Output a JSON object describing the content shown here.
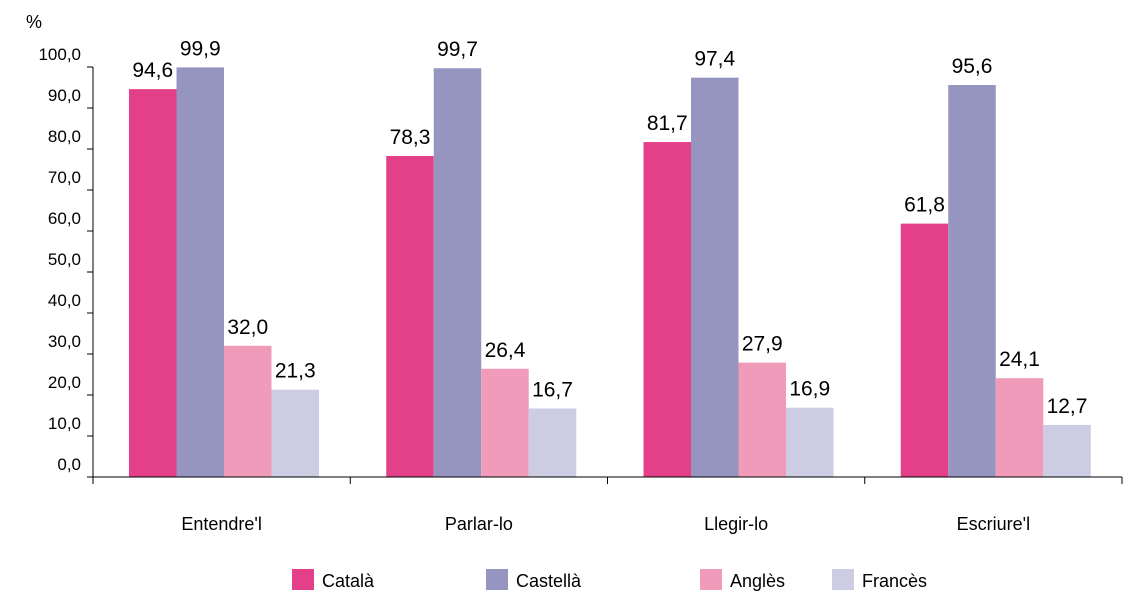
{
  "chart_data": {
    "type": "bar",
    "unit_label": "%",
    "categories": [
      "Entendre'l",
      "Parlar-lo",
      "Llegir-lo",
      "Escriure'l"
    ],
    "series": [
      {
        "name": "Català",
        "color": "#e4408a",
        "values": [
          94.6,
          78.3,
          81.7,
          61.8
        ],
        "labels": [
          "94,6",
          "78,3",
          "81,7",
          "61,8"
        ]
      },
      {
        "name": "Castellà",
        "color": "#9595c0",
        "values": [
          99.9,
          99.7,
          97.4,
          95.6
        ],
        "labels": [
          "99,9",
          "99,7",
          "97,4",
          "95,6"
        ]
      },
      {
        "name": "Anglès",
        "color": "#f09bba",
        "values": [
          32.0,
          26.4,
          27.9,
          24.1
        ],
        "labels": [
          "32,0",
          "26,4",
          "27,9",
          "24,1"
        ]
      },
      {
        "name": "Francès",
        "color": "#cccce3",
        "values": [
          21.3,
          16.7,
          16.9,
          12.7
        ],
        "labels": [
          "21,3",
          "16,7",
          "16,9",
          "12,7"
        ]
      }
    ],
    "ylim": [
      0,
      100
    ],
    "yticks": [
      0,
      10,
      20,
      30,
      40,
      50,
      60,
      70,
      80,
      90,
      100
    ],
    "ytick_labels": [
      "0,0",
      "10,0",
      "20,0",
      "30,0",
      "40,0",
      "50,0",
      "60,0",
      "70,0",
      "80,0",
      "90,0",
      "100,0"
    ],
    "grid": false,
    "legend_position": "bottom"
  }
}
